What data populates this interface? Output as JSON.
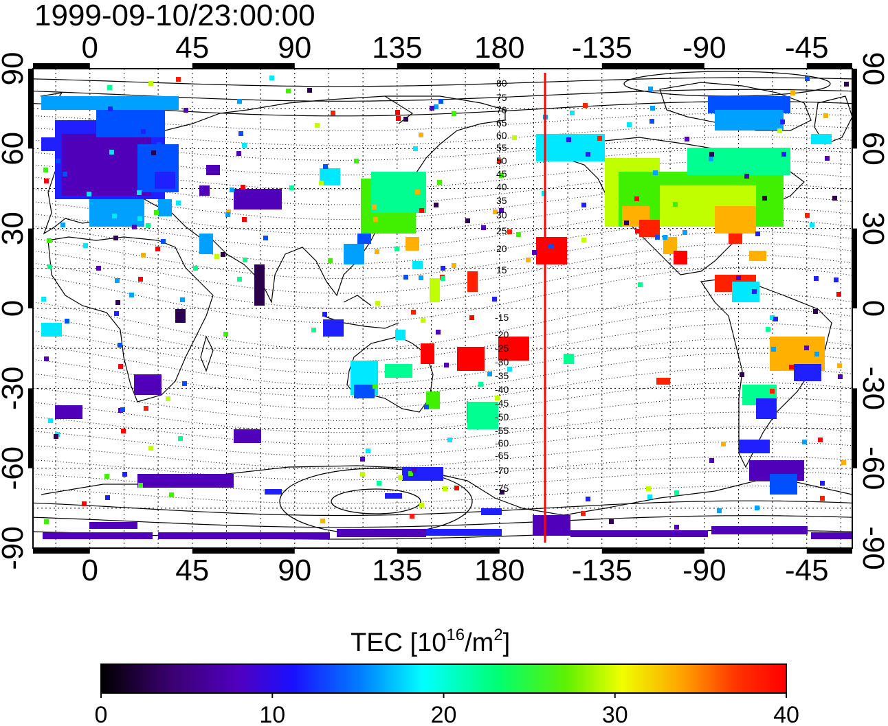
{
  "title": "1999-09-10/23:00:00",
  "map": {
    "top_axis_labels": [
      "0",
      "45",
      "90",
      "135",
      "180",
      "-135",
      "-90",
      "-45"
    ],
    "bottom_axis_labels": [
      "0",
      "45",
      "90",
      "135",
      "180",
      "-135",
      "-90",
      "-45"
    ],
    "left_axis_labels": [
      "90",
      "60",
      "30",
      "0",
      "-30",
      "-60",
      "-90"
    ],
    "right_axis_labels": [
      "90",
      "60",
      "30",
      "0",
      "-30",
      "-60",
      "-90"
    ],
    "contour_labels_north": [
      "80",
      "75",
      "70",
      "65",
      "60",
      "55",
      "50",
      "45",
      "40",
      "35",
      "30",
      "25",
      "20",
      "15"
    ],
    "contour_labels_south": [
      "-15",
      "-20",
      "-25",
      "-30",
      "-35",
      "-40",
      "-45",
      "-50",
      "-55",
      "-60",
      "-65",
      "-70",
      "-75"
    ],
    "terminator_longitude": 200,
    "terminator_color": "#ff0000"
  },
  "colorbar": {
    "title_prefix": "TEC  [10",
    "title_sup1": "16",
    "title_mid": "/m",
    "title_sup2": "2",
    "title_suffix": "]",
    "ticks": [
      "0",
      "10",
      "20",
      "30",
      "40"
    ],
    "min": 0,
    "max": 40,
    "colors": [
      "#000000",
      "#2a0050",
      "#5000b4",
      "#2000ff",
      "#0060ff",
      "#00e8ff",
      "#00ff80",
      "#30f000",
      "#c8ff00",
      "#ffff00",
      "#ffa000",
      "#ff3000",
      "#ff0000"
    ]
  }
}
